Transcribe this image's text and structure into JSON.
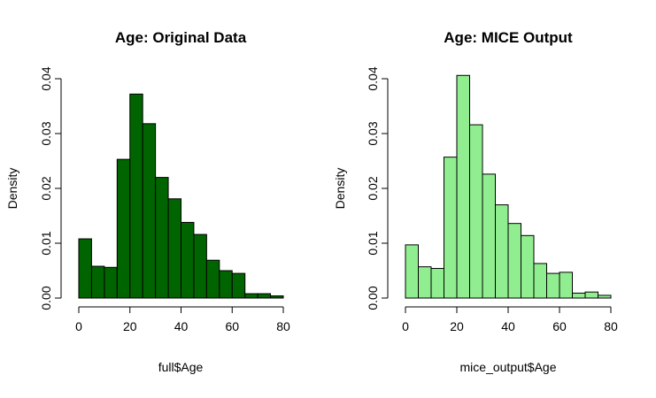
{
  "chart_data": [
    {
      "type": "bar",
      "title": "Age: Original Data",
      "xlabel": "full$Age",
      "ylabel": "Density",
      "bin_edges": [
        0,
        5,
        10,
        15,
        20,
        25,
        30,
        35,
        40,
        45,
        50,
        55,
        60,
        65,
        70,
        75,
        80
      ],
      "values": [
        0.0108,
        0.0058,
        0.0056,
        0.0253,
        0.0372,
        0.0318,
        0.022,
        0.0181,
        0.0138,
        0.0116,
        0.0069,
        0.005,
        0.0045,
        0.0008,
        0.0008,
        0.0004
      ],
      "xlim": [
        0,
        80
      ],
      "ylim": [
        0,
        0.04
      ],
      "xticks": [
        0,
        20,
        40,
        60,
        80
      ],
      "xtick_labels": [
        "0",
        "20",
        "40",
        "60",
        "80"
      ],
      "yticks": [
        0,
        0.01,
        0.02,
        0.03,
        0.04
      ],
      "ytick_labels": [
        "0.00",
        "0.01",
        "0.02",
        "0.03",
        "0.04"
      ],
      "colors": {
        "fill": "#006400",
        "stroke": "#000000"
      }
    },
    {
      "type": "bar",
      "title": "Age: MICE Output",
      "xlabel": "mice_output$Age",
      "ylabel": "Density",
      "bin_edges": [
        0,
        5,
        10,
        15,
        20,
        25,
        30,
        35,
        40,
        45,
        50,
        55,
        60,
        65,
        70,
        75,
        80
      ],
      "values": [
        0.0097,
        0.0057,
        0.0054,
        0.0257,
        0.0406,
        0.0316,
        0.0226,
        0.017,
        0.0136,
        0.0114,
        0.0063,
        0.0045,
        0.0047,
        0.0009,
        0.0011,
        0.0005
      ],
      "xlim": [
        0,
        80
      ],
      "ylim": [
        0,
        0.04
      ],
      "xticks": [
        0,
        20,
        40,
        60,
        80
      ],
      "xtick_labels": [
        "0",
        "20",
        "40",
        "60",
        "80"
      ],
      "yticks": [
        0,
        0.01,
        0.02,
        0.03,
        0.04
      ],
      "ytick_labels": [
        "0.00",
        "0.01",
        "0.02",
        "0.03",
        "0.04"
      ],
      "colors": {
        "fill": "#90ee90",
        "stroke": "#000000"
      }
    }
  ]
}
